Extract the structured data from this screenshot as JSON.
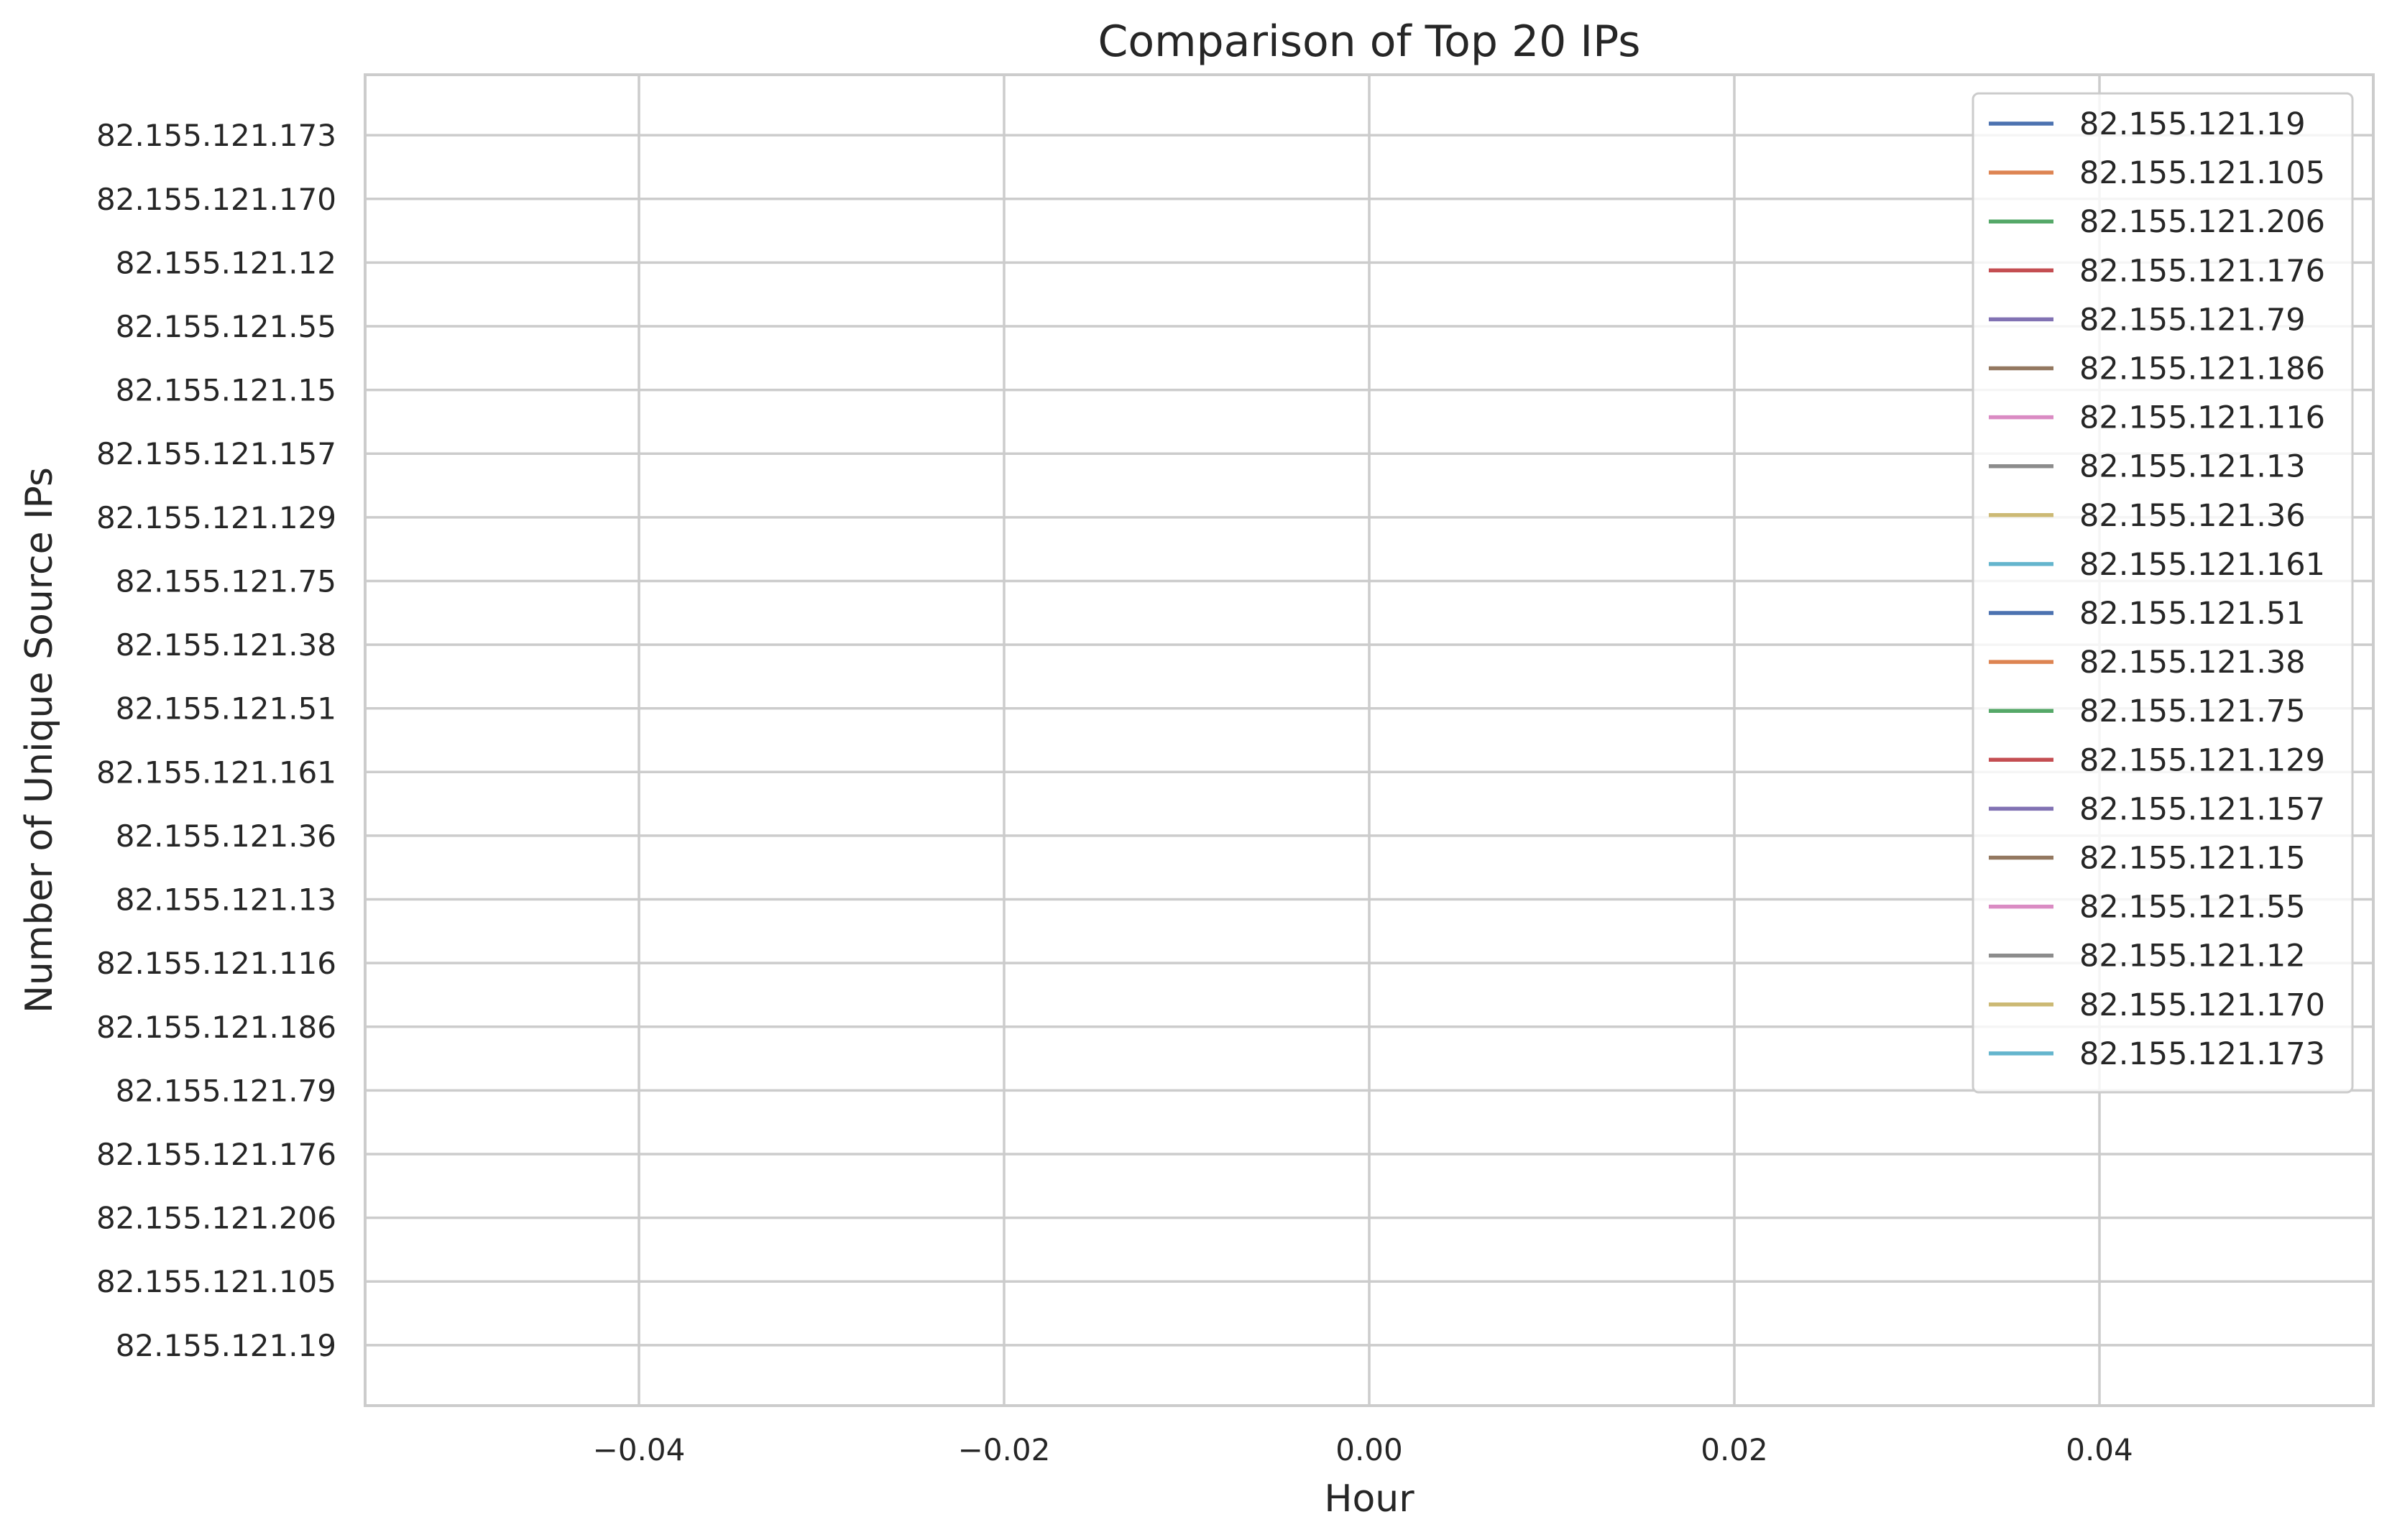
{
  "chart_data": {
    "type": "line",
    "title": "Comparison of Top 20 IPs",
    "xlabel": "Hour",
    "ylabel": "Number of Unique Source IPs",
    "xlim": [
      -0.055,
      0.055
    ],
    "x_ticks": [
      -0.04,
      -0.02,
      0.0,
      0.02,
      0.04
    ],
    "x_tick_labels": [
      "−0.04",
      "−0.02",
      "0.00",
      "0.02",
      "0.04"
    ],
    "y_categories": [
      "82.155.121.19",
      "82.155.121.105",
      "82.155.121.206",
      "82.155.121.176",
      "82.155.121.79",
      "82.155.121.186",
      "82.155.121.116",
      "82.155.121.13",
      "82.155.121.36",
      "82.155.121.161",
      "82.155.121.51",
      "82.155.121.38",
      "82.155.121.75",
      "82.155.121.129",
      "82.155.121.157",
      "82.155.121.15",
      "82.155.121.55",
      "82.155.121.12",
      "82.155.121.170",
      "82.155.121.173"
    ],
    "grid": true,
    "legend_position": "top-right",
    "series": [
      {
        "name": "82.155.121.19",
        "color": "#4c72b0",
        "values": []
      },
      {
        "name": "82.155.121.105",
        "color": "#dd8452",
        "values": []
      },
      {
        "name": "82.155.121.206",
        "color": "#55a868",
        "values": []
      },
      {
        "name": "82.155.121.176",
        "color": "#c44e52",
        "values": []
      },
      {
        "name": "82.155.121.79",
        "color": "#8172b3",
        "values": []
      },
      {
        "name": "82.155.121.186",
        "color": "#937860",
        "values": []
      },
      {
        "name": "82.155.121.116",
        "color": "#da8bc3",
        "values": []
      },
      {
        "name": "82.155.121.13",
        "color": "#8c8c8c",
        "values": []
      },
      {
        "name": "82.155.121.36",
        "color": "#ccb974",
        "values": []
      },
      {
        "name": "82.155.121.161",
        "color": "#64b5cd",
        "values": []
      },
      {
        "name": "82.155.121.51",
        "color": "#4c72b0",
        "values": []
      },
      {
        "name": "82.155.121.38",
        "color": "#dd8452",
        "values": []
      },
      {
        "name": "82.155.121.75",
        "color": "#55a868",
        "values": []
      },
      {
        "name": "82.155.121.129",
        "color": "#c44e52",
        "values": []
      },
      {
        "name": "82.155.121.157",
        "color": "#8172b3",
        "values": []
      },
      {
        "name": "82.155.121.15",
        "color": "#937860",
        "values": []
      },
      {
        "name": "82.155.121.55",
        "color": "#da8bc3",
        "values": []
      },
      {
        "name": "82.155.121.12",
        "color": "#8c8c8c",
        "values": []
      },
      {
        "name": "82.155.121.170",
        "color": "#ccb974",
        "values": []
      },
      {
        "name": "82.155.121.173",
        "color": "#64b5cd",
        "values": []
      }
    ]
  }
}
